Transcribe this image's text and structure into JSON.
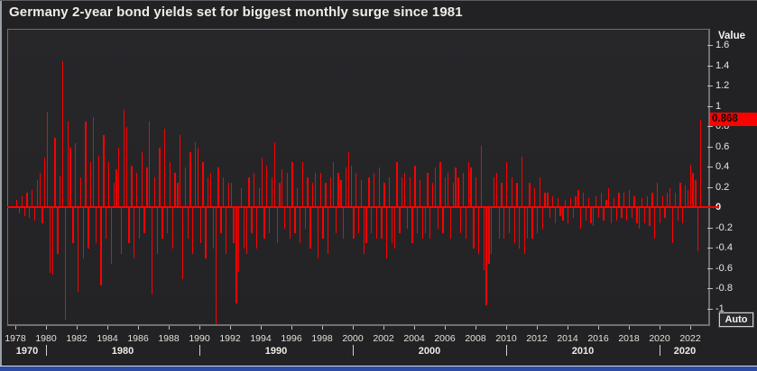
{
  "window": {
    "title": "Germany 2-year bond yields set for biggest monthly surge since 1981"
  },
  "axis": {
    "value_header": "Value",
    "y_ticks": [
      "1.6",
      "1.4",
      "1.2",
      "1",
      "0.8",
      "0.6",
      "0.4",
      "0.2",
      "0",
      "-0.2",
      "-0.4",
      "-0.6",
      "-0.8",
      "-1"
    ],
    "x_years": [
      "1978",
      "1980",
      "1982",
      "1984",
      "1986",
      "1988",
      "1990",
      "1992",
      "1994",
      "1996",
      "1998",
      "2000",
      "2002",
      "2004",
      "2006",
      "2008",
      "2010",
      "2012",
      "2014",
      "2016",
      "2018",
      "2020",
      "2022"
    ],
    "decades": [
      "1970",
      "1980",
      "1990",
      "2000",
      "2010",
      "2020"
    ]
  },
  "badge": {
    "value": "0.868",
    "color": "#fb0200"
  },
  "auto_button": {
    "label": "Auto"
  },
  "colors": {
    "bar": "#fb0200",
    "zero_line": "#fb0200",
    "background": "#232326",
    "frame": "#707070",
    "text": "#e6e6e6",
    "badge_bg": "#fb0200",
    "taskbar_blue": "#2d4ba3"
  },
  "chart_data": {
    "type": "bar",
    "title": "Germany 2-year bond yields set for biggest monthly surge since 1981",
    "xlabel": "",
    "ylabel": "Value",
    "ylim": [
      -1.0,
      1.6
    ],
    "x_range_years": [
      1978,
      2022.8
    ],
    "grid": false,
    "legend": "none",
    "current_value": 0.868,
    "current_value_highlighted": true,
    "zero_line": true,
    "values_start_year": 1978,
    "values_per_year": 6,
    "values": [
      0.08,
      -0.05,
      0.12,
      -0.08,
      0.15,
      -0.1,
      0.18,
      -0.12,
      0.28,
      0.35,
      -0.15,
      0.5,
      0.95,
      -0.64,
      -0.66,
      0.69,
      -0.45,
      0.32,
      1.45,
      -1.1,
      0.85,
      0.6,
      -0.35,
      0.64,
      -0.83,
      0.3,
      -0.5,
      0.85,
      -0.4,
      0.45,
      0.9,
      -0.35,
      0.52,
      -0.76,
      0.72,
      -0.3,
      0.45,
      -0.55,
      0.25,
      0.38,
      0.6,
      -0.45,
      0.97,
      0.8,
      -0.35,
      0.42,
      -0.5,
      0.35,
      -0.3,
      0.55,
      -0.25,
      0.4,
      0.85,
      -0.85,
      0.3,
      -0.45,
      0.6,
      -0.3,
      0.78,
      -0.25,
      0.45,
      -0.4,
      0.35,
      0.25,
      0.72,
      -0.7,
      0.4,
      -0.3,
      0.55,
      -0.45,
      0.65,
      0.6,
      -0.35,
      0.45,
      -0.5,
      0.3,
      0.35,
      -0.4,
      -1.15,
      0.4,
      -0.25,
      0.3,
      -0.45,
      0.25,
      0.25,
      -0.35,
      -0.94,
      -0.63,
      0.2,
      -0.4,
      -0.45,
      0.3,
      -0.25,
      0.35,
      -0.4,
      0.2,
      0.5,
      -0.3,
      0.42,
      -0.25,
      0.3,
      0.65,
      -0.35,
      0.25,
      0.38,
      -0.2,
      0.35,
      -0.3,
      0.45,
      -0.25,
      0.2,
      -0.35,
      0.45,
      -0.2,
      0.3,
      -0.4,
      0.25,
      0.35,
      -0.5,
      0.35,
      -0.3,
      0.25,
      -0.45,
      0.3,
      0.45,
      -0.25,
      0.35,
      0.28,
      -0.3,
      0.4,
      0.55,
      0.42,
      -0.3,
      0.35,
      -0.25,
      0.28,
      -0.45,
      -0.35,
      0.3,
      -0.25,
      0.35,
      -0.3,
      0.4,
      -0.3,
      0.25,
      -0.5,
      0.3,
      -0.35,
      -0.4,
      0.45,
      -0.25,
      0.3,
      0.35,
      -0.2,
      0.3,
      -0.35,
      0.42,
      -0.25,
      0.28,
      -0.3,
      -0.25,
      0.35,
      -0.3,
      0.25,
      0.4,
      -0.2,
      0.45,
      -0.25,
      0.3,
      0.35,
      -0.3,
      0.25,
      0.4,
      0.3,
      -0.25,
      0.35,
      -0.3,
      0.45,
      0.4,
      -0.4,
      0.3,
      -0.45,
      0.61,
      -0.61,
      -0.96,
      -0.55,
      -0.45,
      0.3,
      0.35,
      -0.3,
      0.25,
      -0.3,
      0.45,
      -0.25,
      0.3,
      -0.35,
      0.25,
      -0.4,
      0.51,
      -0.45,
      -0.3,
      0.25,
      -0.3,
      0.2,
      -0.25,
      0.3,
      -0.2,
      0.15,
      0.15,
      -0.1,
      0.12,
      -0.15,
      0.1,
      -0.08,
      -0.12,
      0.08,
      -0.15,
      0.1,
      -0.1,
      0.12,
      0.18,
      -0.2,
      0.15,
      -0.12,
      0.1,
      -0.15,
      -0.18,
      0.12,
      -0.1,
      0.15,
      -0.12,
      0.08,
      0.2,
      -0.15,
      0.1,
      -0.12,
      0.15,
      -0.1,
      0.15,
      -0.12,
      0.18,
      -0.1,
      0.12,
      -0.15,
      -0.2,
      0.1,
      -0.15,
      0.12,
      -0.18,
      0.15,
      -0.3,
      0.25,
      -0.15,
      0.12,
      -0.1,
      0.15,
      0.2,
      -0.35,
      0.15,
      -0.12,
      0.25,
      -0.15,
      0.22,
      0.18,
      0.43,
      0.35,
      0.28,
      -0.43,
      0.868
    ]
  }
}
